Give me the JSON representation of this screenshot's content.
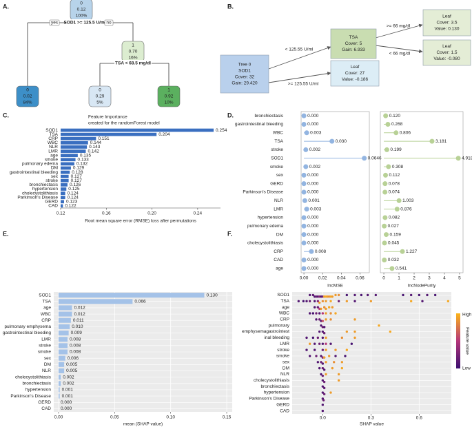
{
  "panel_labels": [
    "A.",
    "B.",
    "C.",
    "D.",
    "E.",
    "F."
  ],
  "tree_a": {
    "nodes": [
      {
        "class": "0",
        "value": "0.12",
        "percent": "100%"
      },
      {
        "class": "0",
        "value": "0.02",
        "percent": "84%"
      },
      {
        "class": "1",
        "value": "0.70",
        "percent": "16%"
      },
      {
        "class": "0",
        "value": "0.29",
        "percent": "5%"
      },
      {
        "class": "1",
        "value": "0.92",
        "percent": "10%"
      }
    ],
    "splits": [
      "SOD1 >= 125.5 U/ml",
      "TSA < 68.5 mg/dl"
    ],
    "yes": "yes",
    "no": "no"
  },
  "tree_b": {
    "nodes": [
      {
        "lines": [
          "Tree 0",
          "SOD1",
          "Cover: 32",
          "Gain: 29.420"
        ]
      },
      {
        "lines": [
          "TSA",
          "Cover: 5",
          "Gain: 6.933"
        ]
      },
      {
        "lines": [
          "Leaf",
          "Cover: 27",
          "Value: -0.186"
        ]
      },
      {
        "lines": [
          "Leaf",
          "Cover: 3.5",
          "Value: 0.130"
        ]
      },
      {
        "lines": [
          "Leaf",
          "Cover: 1.5",
          "Value: -0.080"
        ]
      }
    ],
    "edges": [
      "< 125.55 U/ml",
      ">= 125.55 U/ml",
      ">= 66 mg/dl",
      "< 66 mg/dl"
    ]
  },
  "chart_data": [
    {
      "type": "hbar",
      "title": "Feature Importance",
      "subtitle": "created for the randomForest model",
      "categories": [
        "SOD1",
        "TSA",
        "CRP",
        "WBC",
        "NLR",
        "LMR",
        "age",
        "smoke",
        "pulmonary edema",
        "DM",
        "gastrointestinal bleeding",
        "sex",
        "stroke",
        "bronchiectasis",
        "hypertension",
        "cholecystolithiasis",
        "Parkinson's Disease",
        "GERD",
        "CAD"
      ],
      "values": [
        0.254,
        0.204,
        0.151,
        0.144,
        0.143,
        0.142,
        0.135,
        0.133,
        0.132,
        0.129,
        0.128,
        0.127,
        0.127,
        0.126,
        0.125,
        0.124,
        0.124,
        0.123,
        0.122
      ],
      "xlim": [
        0.12,
        0.26
      ],
      "xticks": [
        {
          "value": 0.12,
          "label": "0.12"
        },
        {
          "value": 0.16,
          "label": "0.16"
        },
        {
          "value": 0.2,
          "label": "0.20"
        },
        {
          "value": 0.24,
          "label": "0.24"
        }
      ],
      "x_label": "Root mean square error (RMSE) loss after permutations",
      "color": "#3a6fc0",
      "grid": false
    },
    {
      "type": "lollipop",
      "categories": [
        "bronchiectasis",
        "gastrointestinal bleeding",
        "WBC",
        "TSA",
        "stroke",
        "SOD1",
        "smoke",
        "sex",
        "GERD",
        "Parkinson's Disease",
        "NLR",
        "LMR",
        "hypertension",
        "pulmonary edema",
        "DM",
        "cholecystolithiasis",
        "CRP",
        "CAD",
        "age"
      ],
      "values": [
        0,
        0,
        0.003,
        0.03,
        0.002,
        0.0646,
        0.002,
        0,
        0,
        0,
        0.001,
        0.003,
        0,
        0,
        0,
        0,
        0.008,
        0,
        0
      ],
      "value_labels": [
        "0.000",
        "0.000",
        "0.003",
        "0.030",
        "0.002",
        "0.0646",
        "0.002",
        "0.000",
        "0.000",
        "0.000",
        "0.001",
        "0.003",
        "0.000",
        "0.000",
        "0.000",
        "0.000",
        "0.008",
        "0.000",
        "0.000"
      ],
      "xlim": [
        -0.003,
        0.07
      ],
      "xticks": [
        {
          "value": 0,
          "label": "0.00"
        },
        {
          "value": 0.02,
          "label": "0.02"
        },
        {
          "value": 0.04,
          "label": "0.04"
        },
        {
          "value": 0.06,
          "label": "0.06"
        }
      ],
      "x_label": "IncMSE",
      "color": "#93b5e1"
    },
    {
      "type": "lollipop",
      "values": [
        0.12,
        0.268,
        0.806,
        3.181,
        0.199,
        4.918,
        0.308,
        0.112,
        0.078,
        0.074,
        1.003,
        0.876,
        0.082,
        0.027,
        0.159,
        0.045,
        1.227,
        0.032,
        0.541
      ],
      "value_labels": [
        "0.120",
        "0.268",
        "0.806",
        "3.181",
        "0.199",
        "4.918",
        "0.308",
        "0.112",
        "0.078",
        "0.074",
        "1.003",
        "0.876",
        "0.082",
        "0.027",
        "0.159",
        "0.045",
        "1.227",
        "0.032",
        "0.541"
      ],
      "xlim": [
        -0.23,
        5.23
      ],
      "xticks": [
        0,
        1,
        2,
        3,
        4,
        5
      ],
      "x_label": "IncNodePurity",
      "color": "#b8d196"
    },
    {
      "type": "hbar",
      "categories": [
        "SOD1",
        "TSA",
        "age",
        "WBC",
        "CRP",
        "pulmonary emphysema",
        "gastrointestinal bleeding",
        "LMR",
        "stroke",
        "smoke",
        "sex",
        "DM",
        "NLR",
        "cholecystolithiasis",
        "bronchiectasis",
        "hypertension",
        "Parkinson's Disease",
        "GERD",
        "CAD"
      ],
      "values": [
        0.13,
        0.066,
        0.012,
        0.012,
        0.011,
        0.01,
        0.009,
        0.008,
        0.008,
        0.008,
        0.006,
        0.005,
        0.005,
        0.002,
        0.002,
        0.001,
        0.001,
        0,
        0
      ],
      "value_labels": [
        "0.130",
        "0.066",
        "0.012",
        "0.012",
        "0.011",
        "0.010",
        "0.009",
        "0.008",
        "0.008",
        "0.008",
        "0.006",
        "0.005",
        "0.005",
        "0.002",
        "0.002",
        "0.001",
        "0.001",
        "0.000",
        "0.000"
      ],
      "xlim": [
        -0.0043,
        0.1549
      ],
      "xticks": [
        {
          "value": 0,
          "label": "0.00"
        },
        {
          "value": 0.05,
          "label": "0.05"
        },
        {
          "value": 0.1,
          "label": "0.10"
        },
        {
          "value": 0.15,
          "label": "0.15"
        }
      ],
      "x_label": "mean (SHAP value)",
      "color": "#a4c2e8",
      "grid": true
    },
    {
      "type": "beeswarm",
      "rows": [
        {
          "label": "SOD1",
          "values": [
            -0.08,
            -0.06,
            -0.05,
            -0.04,
            -0.03,
            -0.02,
            -0.01,
            0,
            0.01,
            0.02,
            0.03,
            0.04,
            0.05,
            0.06,
            0.08,
            0.1,
            0.15,
            0.2,
            0.24,
            0.28,
            0.33,
            0.5,
            0.55,
            0.6,
            0.65,
            0.7
          ],
          "feature_values": [
            0.1,
            0.15,
            0.1,
            0.2,
            0.1,
            0.3,
            0.1,
            0.2,
            0.9,
            0.95,
            0.9,
            0.85,
            0.95,
            0.9,
            0.9,
            0.85,
            0.05,
            0.1,
            0.05,
            0.1,
            0.1,
            0.05,
            0.1,
            0.05,
            0.1,
            0.05
          ]
        },
        {
          "label": "TSA",
          "values": [
            -0.15,
            -0.12,
            -0.1,
            -0.08,
            -0.05,
            -0.03,
            -0.02,
            0,
            0.02,
            0.05,
            0.1,
            0.15,
            0.2,
            0.3,
            0.55,
            0.62,
            0.78
          ],
          "feature_values": [
            0.1,
            0.05,
            0.1,
            0.2,
            0.1,
            0.3,
            0.9,
            0.85,
            0.9,
            0.95,
            0.2,
            0.9,
            0.1,
            0.9,
            0.95,
            0.1,
            0.95
          ]
        },
        {
          "label": "age",
          "values": [
            -0.05,
            -0.03,
            -0.02,
            -0.01,
            0.01,
            0.02,
            0.04,
            0.06
          ],
          "feature_values": [
            0.1,
            0.2,
            0.5,
            0.9,
            0.85,
            0.9,
            0.95,
            0.9
          ]
        },
        {
          "label": "WBC",
          "values": [
            -0.08,
            -0.06,
            -0.04,
            -0.02,
            0,
            0.02,
            0.05,
            0.08
          ],
          "feature_values": [
            0.1,
            0.05,
            0.2,
            0.1,
            0.5,
            0.9,
            0.85,
            0.95
          ]
        },
        {
          "label": "CRP",
          "values": [
            -0.04,
            -0.02,
            -0.01,
            0,
            0.02,
            0.05,
            0.2
          ],
          "feature_values": [
            0.1,
            0.2,
            0.1,
            0.6,
            0.9,
            0.85,
            0.9
          ]
        },
        {
          "label": "pulmonary",
          "values": [
            -0.01,
            0,
            0.01,
            0.35
          ],
          "feature_values": [
            0.1,
            0.2,
            0.1,
            0.95
          ]
        },
        {
          "label": "emphysemagastrointest",
          "values": [
            -0.02,
            0,
            0.01,
            0.15,
            0.2,
            0.42
          ],
          "feature_values": [
            0.1,
            0.1,
            0.2,
            0.9,
            0.9,
            0.95
          ]
        },
        {
          "label": "inal bleeding",
          "values": [
            -0.1,
            -0.06,
            -0.03,
            0,
            0.02,
            0.12,
            0.2
          ],
          "feature_values": [
            0.1,
            0.05,
            0.2,
            0.1,
            0.9,
            0.85,
            0.9
          ]
        },
        {
          "label": "LMR",
          "values": [
            -0.08,
            -0.05,
            -0.02,
            0,
            0.02,
            0.05,
            0.18
          ],
          "feature_values": [
            0.9,
            0.1,
            0.2,
            0.1,
            0.5,
            0.1,
            0.05
          ]
        },
        {
          "label": "stroke",
          "values": [
            -0.1,
            -0.05,
            0,
            0.02,
            0.08,
            0.15
          ],
          "feature_values": [
            0.1,
            0.1,
            0.2,
            0.9,
            0.9,
            0.95
          ]
        },
        {
          "label": "smoke",
          "values": [
            -0.08,
            -0.04,
            -0.01,
            0,
            0.01,
            0.04,
            0.08,
            0.14
          ],
          "feature_values": [
            0.1,
            0.2,
            0.1,
            0.3,
            0.9,
            0.9,
            0.1,
            0.05
          ]
        },
        {
          "label": "sex",
          "values": [
            -0.03,
            -0.01,
            0,
            0.02,
            0.07,
            0.12
          ],
          "feature_values": [
            0.1,
            0.2,
            0.1,
            0.9,
            0.85,
            0.9
          ]
        },
        {
          "label": "DM",
          "values": [
            -0.02,
            0,
            0.01,
            0.06,
            0.12
          ],
          "feature_values": [
            0.1,
            0.2,
            0.1,
            0.9,
            0.95
          ]
        },
        {
          "label": "NLR",
          "values": [
            -0.01,
            0,
            0.02,
            0.1
          ],
          "feature_values": [
            0.1,
            0.2,
            0.9,
            0.9
          ]
        },
        {
          "label": "cholecystolithiasis",
          "values": [
            0,
            0.01,
            0.1
          ],
          "feature_values": [
            0.1,
            0.2,
            0.9
          ]
        },
        {
          "label": "bronchiectasis",
          "values": [
            0,
            0.01
          ],
          "feature_values": [
            0.1,
            0.15
          ]
        },
        {
          "label": "hypertension",
          "values": [
            0,
            0.01,
            0.05
          ],
          "feature_values": [
            0.1,
            0.2,
            0.9
          ]
        },
        {
          "label": "Parkinson's Disease",
          "values": [
            0,
            0.005
          ],
          "feature_values": [
            0.1,
            0.2
          ]
        },
        {
          "label": "GERD",
          "values": [
            0
          ],
          "feature_values": [
            0.1
          ]
        },
        {
          "label": "CAD",
          "values": [
            0
          ],
          "feature_values": [
            0.1
          ]
        }
      ],
      "xlim": [
        -0.19,
        0.8
      ],
      "xticks": [
        {
          "value": 0,
          "label": "0.0"
        },
        {
          "value": 0.3,
          "label": "0.3"
        },
        {
          "value": 0.6,
          "label": "0.6"
        }
      ],
      "x_label": "SHAP value",
      "colors": [
        "#3b0f70",
        "#b5367a",
        "#fcb519"
      ],
      "grid": true,
      "legend": {
        "title": "Feature value",
        "high": "High",
        "low": "Low"
      }
    }
  ]
}
